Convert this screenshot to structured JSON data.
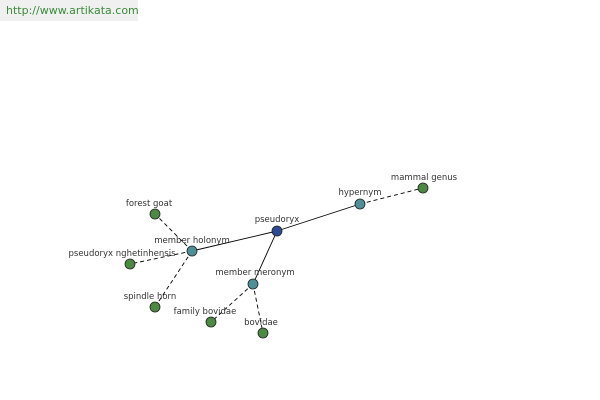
{
  "header": {
    "url": "http://www.artikata.com"
  },
  "nodes": [
    {
      "label": "pseudoryx"
    },
    {
      "label": "hypernym"
    },
    {
      "label": "mammal genus"
    },
    {
      "label": "member holonym"
    },
    {
      "label": "forest goat"
    },
    {
      "label": "pseudoryx nghetinhensis"
    },
    {
      "label": "spindle horn"
    },
    {
      "label": "member meronym"
    },
    {
      "label": "family bovidae"
    },
    {
      "label": "bovidae"
    }
  ]
}
